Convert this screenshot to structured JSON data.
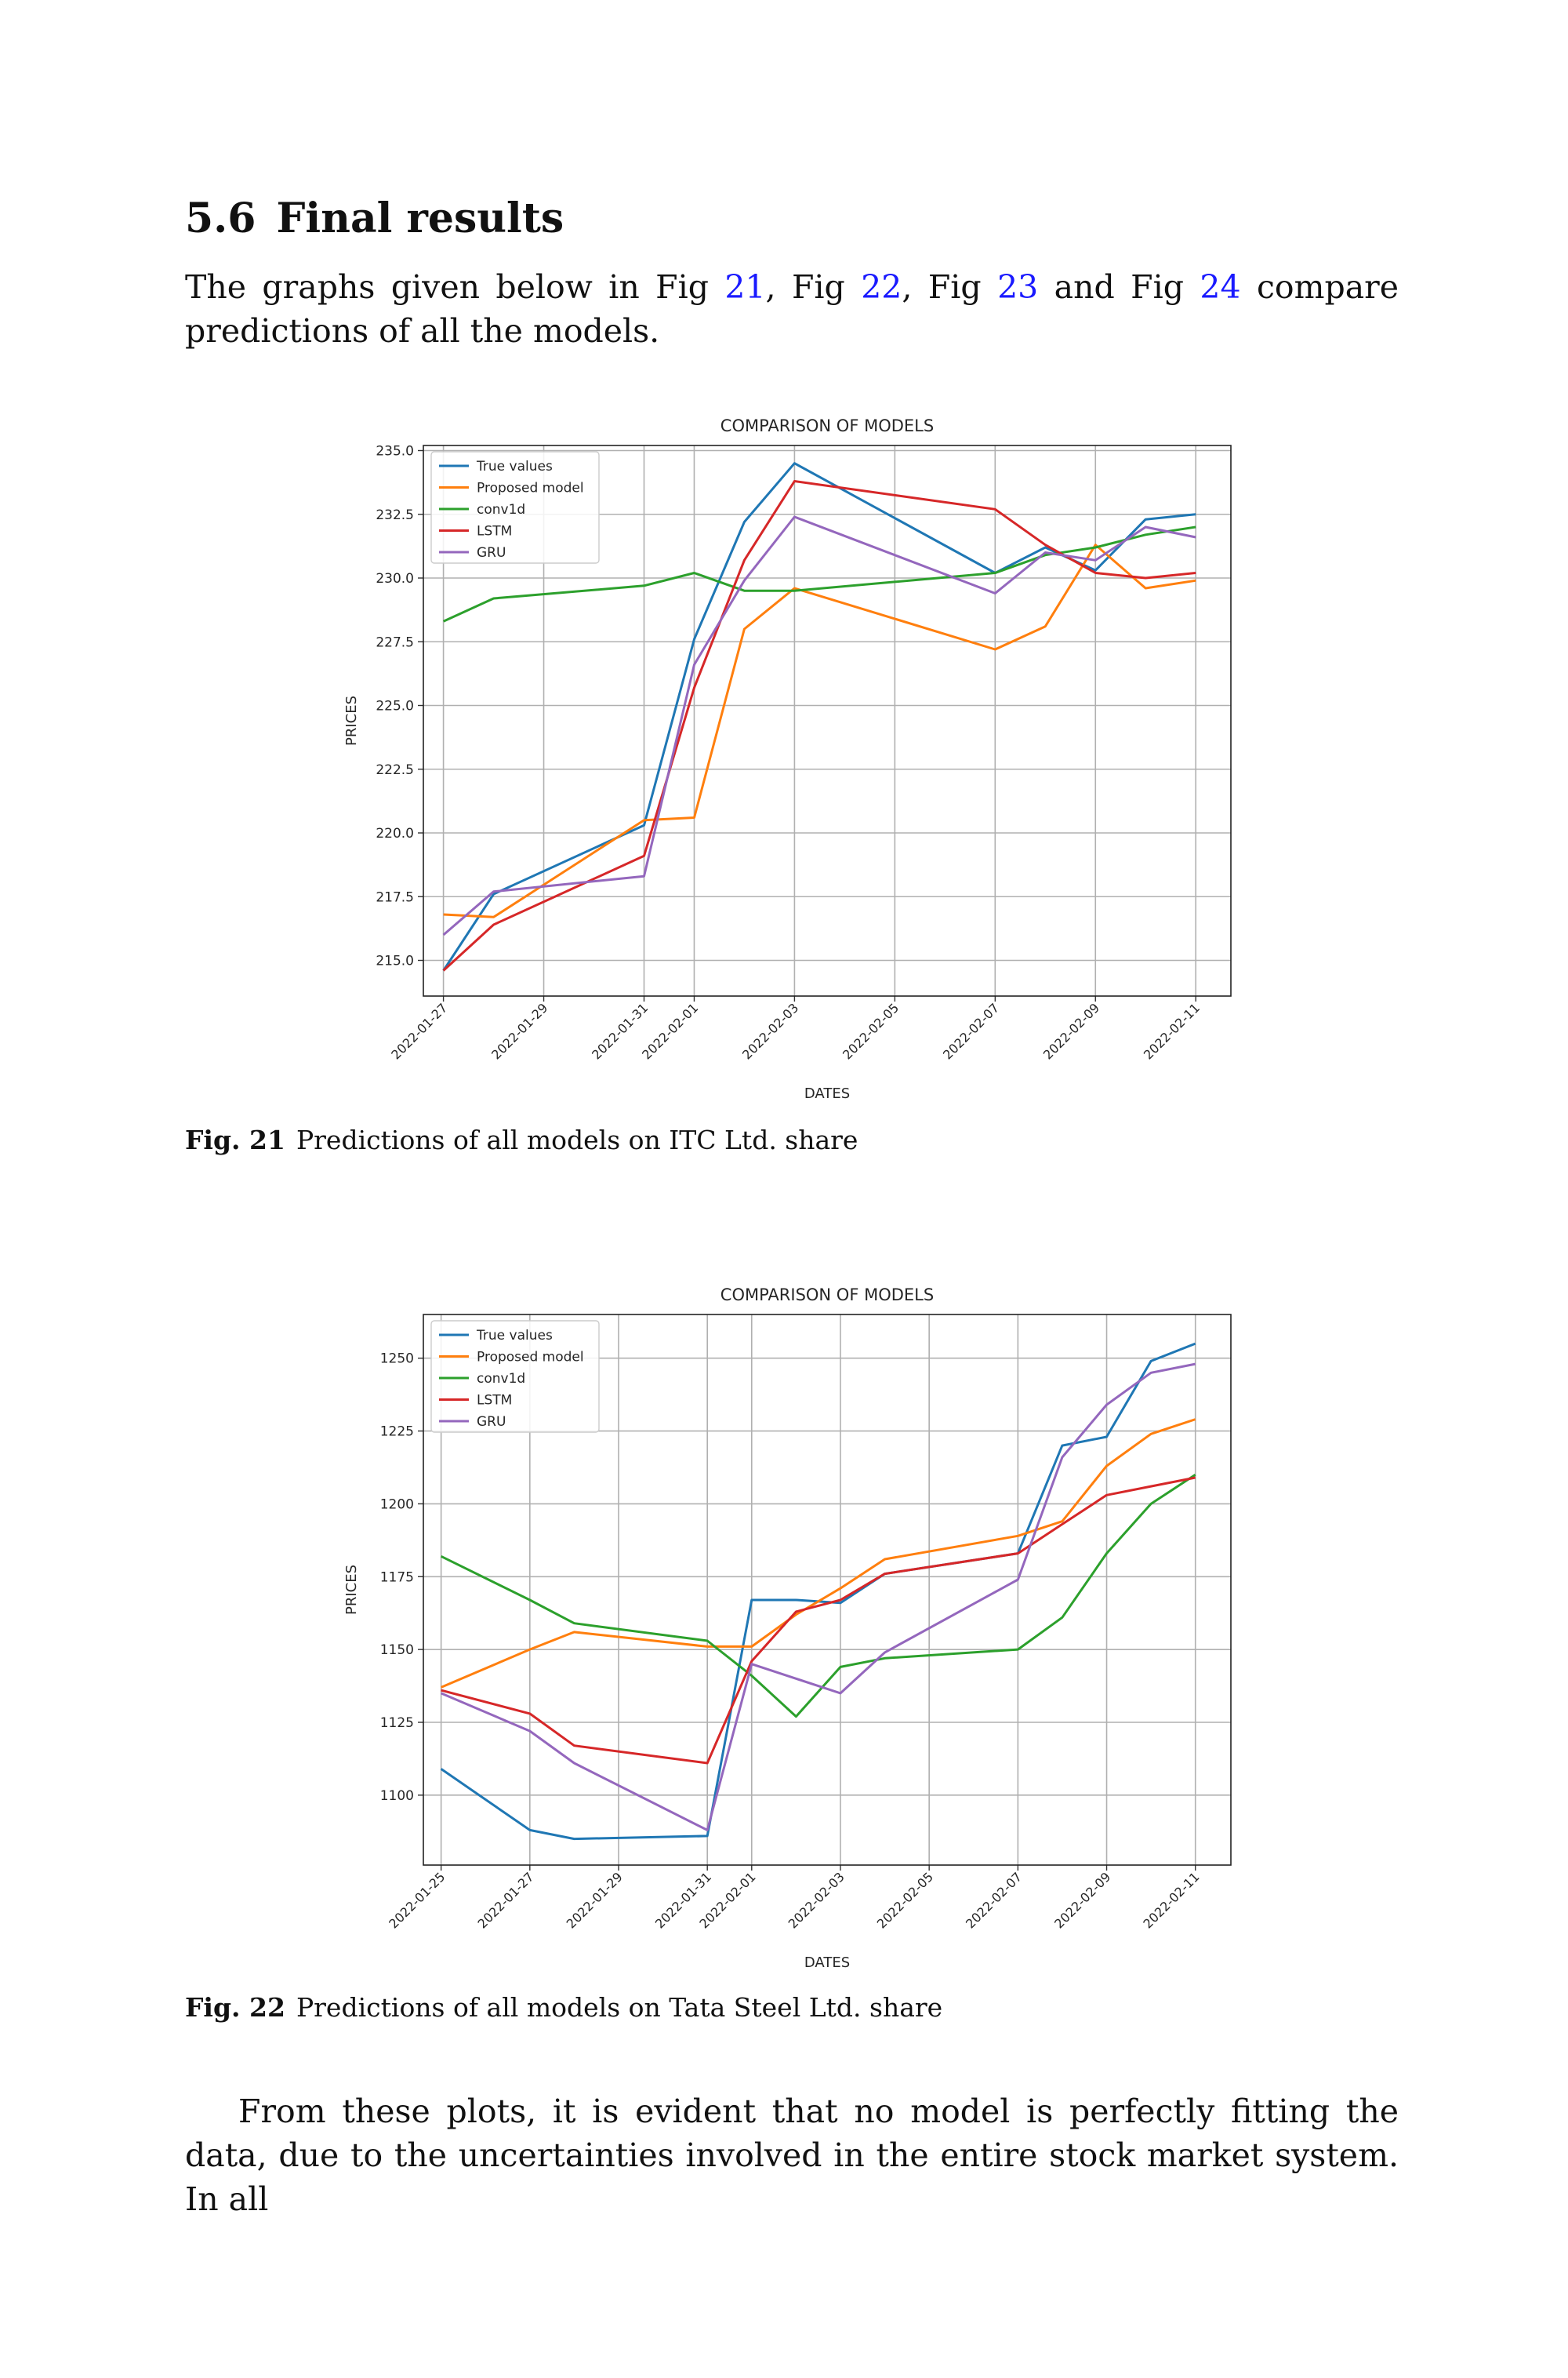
{
  "section": {
    "number": "5.6",
    "title": "Final results"
  },
  "intro": {
    "pre": "The graphs given below in Fig ",
    "ref1": "21",
    "sep1": ", Fig ",
    "ref2": "22",
    "sep2": ", Fig ",
    "ref3": "23",
    "sep3": " and Fig ",
    "ref4": "24",
    "post": " compare predictions of all the models."
  },
  "closing": {
    "text": "From these plots, it is evident that no model is perfectly fitting the data, due to the uncertainties involved in the entire stock market system. In all"
  },
  "colors": {
    "True values": "#1f77b4",
    "Proposed model": "#ff7f0e",
    "conv1d": "#2ca02c",
    "LSTM": "#d62728",
    "GRU": "#9467bd"
  },
  "chart_data": [
    {
      "type": "line",
      "title": "COMPARISON OF MODELS",
      "xlabel": "DATES",
      "ylabel": "PRICES",
      "caption_label": "Fig. 21",
      "caption_text": "Predictions of all models on ITC Ltd. share",
      "xlim": [
        "2022-01-26.6",
        "2022-02-11.7"
      ],
      "ylim": [
        213.6,
        235.2
      ],
      "yticks": [
        215.0,
        217.5,
        220.0,
        222.5,
        225.0,
        227.5,
        230.0,
        232.5,
        235.0
      ],
      "ytick_labels": [
        "215.0",
        "217.5",
        "220.0",
        "222.5",
        "225.0",
        "227.5",
        "230.0",
        "232.5",
        "235.0"
      ],
      "xticks": [
        "2022-01-27",
        "2022-01-29",
        "2022-01-31",
        "2022-02-01",
        "2022-02-03",
        "2022-02-05",
        "2022-02-07",
        "2022-02-09",
        "2022-02-11"
      ],
      "grid": true,
      "legend_position": "upper-left",
      "x": [
        "2022-01-27",
        "2022-01-28",
        "2022-01-31",
        "2022-02-01",
        "2022-02-02",
        "2022-02-03",
        "2022-02-07",
        "2022-02-08",
        "2022-02-09",
        "2022-02-10",
        "2022-02-11"
      ],
      "series": [
        {
          "name": "True values",
          "values": [
            214.6,
            217.6,
            220.3,
            227.6,
            232.2,
            234.5,
            230.2,
            231.2,
            230.3,
            232.3,
            232.5
          ]
        },
        {
          "name": "Proposed model",
          "values": [
            216.8,
            216.7,
            220.5,
            220.6,
            228.0,
            229.6,
            227.2,
            228.1,
            231.3,
            229.6,
            229.9
          ]
        },
        {
          "name": "conv1d",
          "values": [
            228.3,
            229.2,
            229.7,
            230.2,
            229.5,
            229.5,
            230.2,
            230.9,
            231.2,
            231.7,
            232.0
          ]
        },
        {
          "name": "LSTM",
          "values": [
            214.6,
            216.4,
            219.1,
            225.7,
            230.7,
            233.8,
            232.7,
            231.3,
            230.2,
            230.0,
            230.2
          ]
        },
        {
          "name": "GRU",
          "values": [
            216.0,
            217.7,
            218.3,
            226.6,
            229.9,
            232.4,
            229.4,
            231.0,
            230.7,
            232.0,
            231.6
          ]
        }
      ]
    },
    {
      "type": "line",
      "title": "COMPARISON OF MODELS",
      "xlabel": "DATES",
      "ylabel": "PRICES",
      "caption_label": "Fig. 22",
      "caption_text": "Predictions of all models on Tata Steel Ltd. share",
      "xlim": [
        "2022-01-24.6",
        "2022-02-11.8"
      ],
      "ylim": [
        1076,
        1265
      ],
      "yticks": [
        1100,
        1125,
        1150,
        1175,
        1200,
        1225,
        1250
      ],
      "ytick_labels": [
        "1100",
        "1125",
        "1150",
        "1175",
        "1200",
        "1225",
        "1250"
      ],
      "xticks": [
        "2022-01-25",
        "2022-01-27",
        "2022-01-29",
        "2022-01-31",
        "2022-02-01",
        "2022-02-03",
        "2022-02-05",
        "2022-02-07",
        "2022-02-09",
        "2022-02-11"
      ],
      "grid": true,
      "legend_position": "upper-left",
      "x": [
        "2022-01-25",
        "2022-01-27",
        "2022-01-28",
        "2022-01-31",
        "2022-02-01",
        "2022-02-02",
        "2022-02-03",
        "2022-02-04",
        "2022-02-07",
        "2022-02-08",
        "2022-02-09",
        "2022-02-10",
        "2022-02-11"
      ],
      "series": [
        {
          "name": "True values",
          "values": [
            1109,
            1088,
            1085,
            1086,
            1167,
            1167,
            1166,
            1176,
            1183,
            1220,
            1223,
            1249,
            1255
          ]
        },
        {
          "name": "Proposed model",
          "values": [
            1137,
            1150,
            1156,
            1151,
            1151,
            1162,
            1171,
            1181,
            1189,
            1194,
            1213,
            1224,
            1229
          ]
        },
        {
          "name": "conv1d",
          "values": [
            1182,
            1167,
            1159,
            1153,
            1141,
            1127,
            1144,
            1147,
            1150,
            1161,
            1183,
            1200,
            1210
          ]
        },
        {
          "name": "LSTM",
          "values": [
            1136,
            1128,
            1117,
            1111,
            1146,
            1163,
            1167,
            1176,
            1183,
            1193,
            1203,
            1206,
            1209
          ]
        },
        {
          "name": "GRU",
          "values": [
            1135,
            1122,
            1111,
            1088,
            1145,
            1140,
            1135,
            1149,
            1174,
            1216,
            1234,
            1245,
            1248
          ]
        }
      ]
    }
  ]
}
